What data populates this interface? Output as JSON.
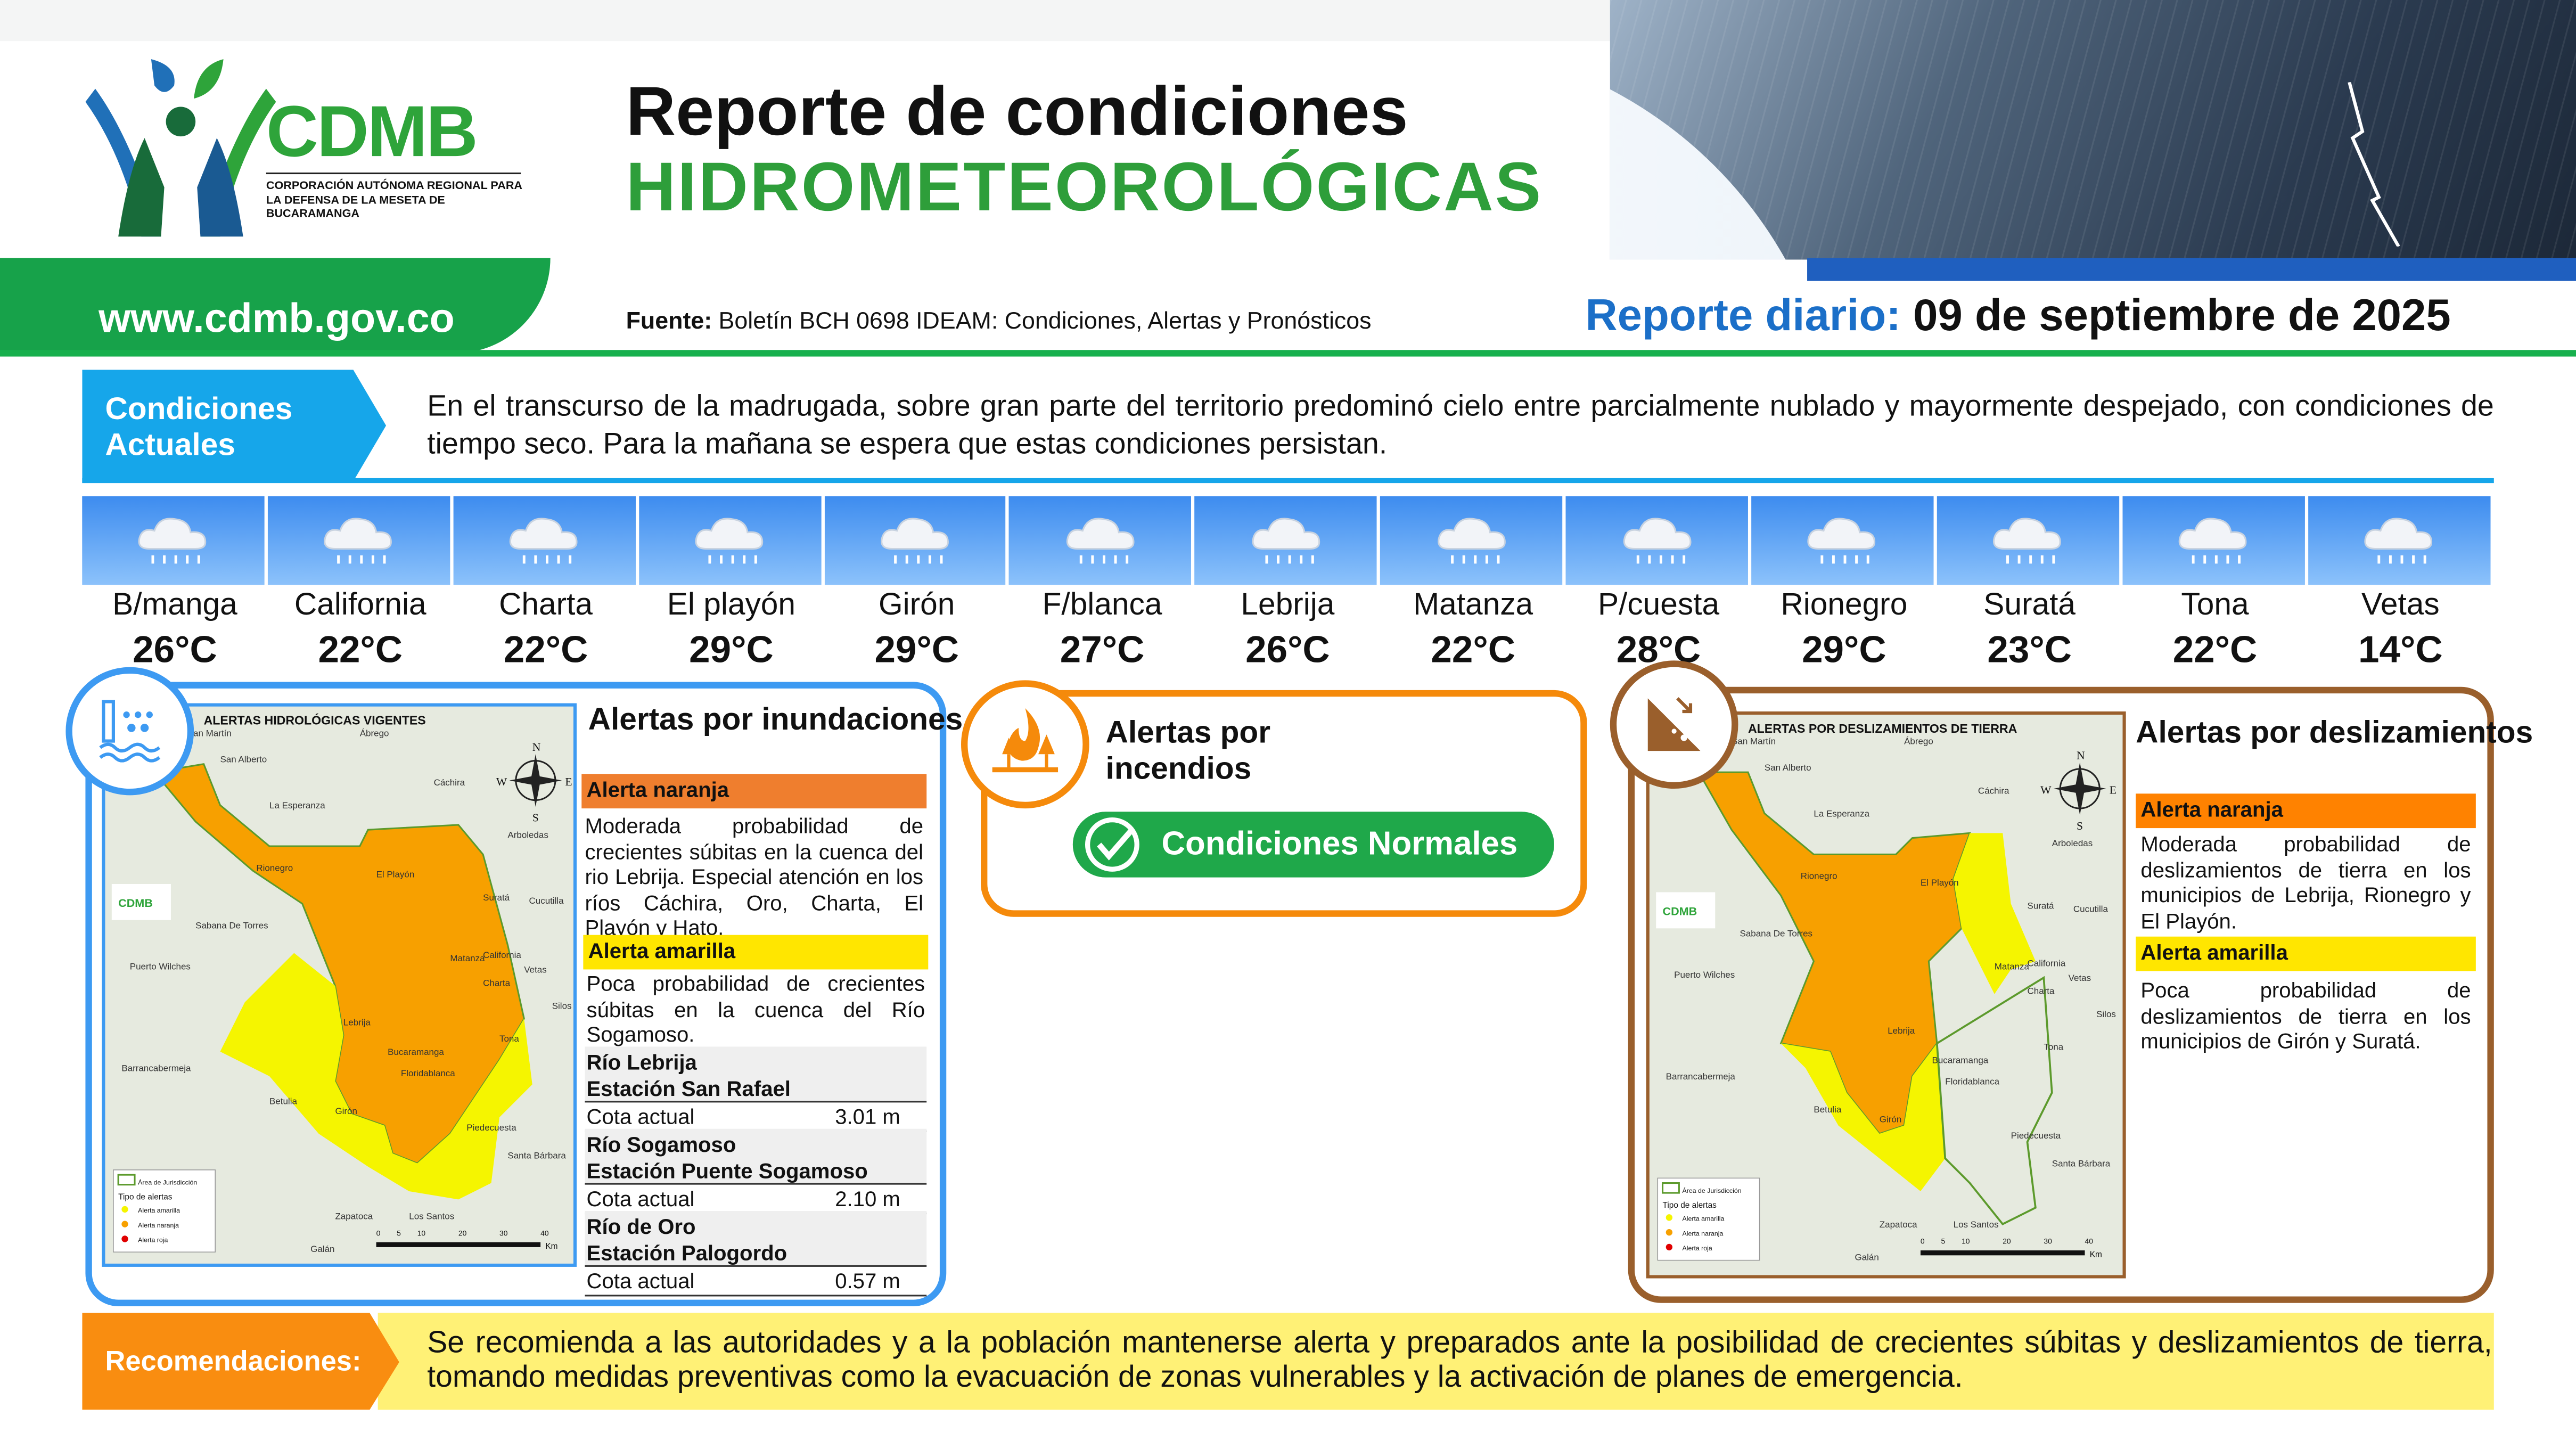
{
  "header": {
    "logo": {
      "name": "CDMB",
      "subtitle": "CORPORACIÓN AUTÓNOMA REGIONAL PARA LA DEFENSA DE LA MESETA DE BUCARAMANGA"
    },
    "title_line1": "Reporte de condiciones",
    "title_line2": "HIDROMETEOROLÓGICAS",
    "url": "www.cdmb.gov.co",
    "source_label": "Fuente:",
    "source_text": " Boletín BCH 0698 IDEAM: Condiciones, Alertas y Pronósticos",
    "report_label": "Reporte diario:",
    "report_date": " 09 de septiembre de 2025"
  },
  "conditions": {
    "label_line1": "Condiciones",
    "label_line2": "Actuales",
    "text": "En el transcurso de la madrugada, sobre gran parte del territorio predominó cielo entre parcialmente nublado y mayormente despejado, con condiciones de tiempo seco. Para la mañana se espera que estas condiciones persistan."
  },
  "weather": [
    {
      "name": "B/manga",
      "temp": "26°C",
      "icon": "rain-cloud-icon"
    },
    {
      "name": "California",
      "temp": "22°C",
      "icon": "rain-cloud-icon"
    },
    {
      "name": "Charta",
      "temp": "22°C",
      "icon": "rain-cloud-icon"
    },
    {
      "name": "El playón",
      "temp": "29°C",
      "icon": "rain-cloud-icon"
    },
    {
      "name": "Girón",
      "temp": "29°C",
      "icon": "rain-cloud-icon"
    },
    {
      "name": "F/blanca",
      "temp": "27°C",
      "icon": "rain-cloud-icon"
    },
    {
      "name": "Lebrija",
      "temp": "26°C",
      "icon": "rain-cloud-icon"
    },
    {
      "name": "Matanza",
      "temp": "22°C",
      "icon": "rain-cloud-icon"
    },
    {
      "name": "P/cuesta",
      "temp": "28°C",
      "icon": "rain-cloud-icon"
    },
    {
      "name": "Rionegro",
      "temp": "29°C",
      "icon": "rain-cloud-icon"
    },
    {
      "name": "Suratá",
      "temp": "23°C",
      "icon": "rain-cloud-icon"
    },
    {
      "name": "Tona",
      "temp": "22°C",
      "icon": "rain-cloud-icon"
    },
    {
      "name": "Vetas",
      "temp": "14°C",
      "icon": "rain-cloud-icon"
    }
  ],
  "floods": {
    "title": "Alertas por inundaciones",
    "map_title": "ALERTAS HIDROLÓGICAS VIGENTES",
    "orange_label": "Alerta naranja",
    "orange_text": "Moderada probabilidad de crecientes súbitas en la cuenca del rio Lebrija. Especial atención en los ríos Cáchira, Oro, Charta, El Playón y Hato.",
    "yellow_label": "Alerta amarilla",
    "yellow_text": "Poca probabilidad de crecientes súbitas en la cuenca del Río Sogamoso.",
    "stations": [
      {
        "river": "Río Lebrija",
        "station": "Estación San Rafael",
        "label": "Cota actual",
        "value": "3.01 m"
      },
      {
        "river": "Río Sogamoso",
        "station": "Estación Puente Sogamoso",
        "label": "Cota actual",
        "value": "2.10 m"
      },
      {
        "river": "Río de Oro",
        "station": "Estación Palogordo",
        "label": "Cota actual",
        "value": "0.57 m"
      }
    ]
  },
  "fires": {
    "title": "Alertas por incendios",
    "status": "Condiciones Normales"
  },
  "landslides": {
    "title": "Alertas por deslizamientos",
    "map_title": "ALERTAS POR DESLIZAMIENTOS DE TIERRA",
    "orange_label": "Alerta naranja",
    "orange_text": "Moderada probabilidad de deslizamientos de tierra en los municipios de Lebrija, Rionegro y El Playón.",
    "yellow_label": "Alerta amarilla",
    "yellow_text": "Poca probabilidad de deslizamientos de tierra en los municipios de Girón y Suratá."
  },
  "map_common": {
    "places": [
      "San Martín",
      "San Alberto",
      "Ábrego",
      "Cáchira",
      "La Esperanza",
      "Arboledas",
      "Rionegro",
      "El Playón",
      "Suratá",
      "Cucutilla",
      "Sabana De Torres",
      "Puerto Wilches",
      "Matanza",
      "California",
      "Vetas",
      "Charta",
      "Silos",
      "Lebrija",
      "Tona",
      "Bucaramanga",
      "Barrancabermeja",
      "Floridablanca",
      "Betulia",
      "Girón",
      "Piedecuesta",
      "Santa Bárbara",
      "Zapatoca",
      "Los Santos",
      "Galán"
    ],
    "legend_area": "Área de Jurisdicción",
    "legend_title": "Tipo de alertas",
    "legend_items": [
      "Alerta amarilla",
      "Alerta naranja",
      "Alerta roja"
    ],
    "scale": [
      "0",
      "5",
      "10",
      "20",
      "30",
      "40",
      "Km"
    ],
    "compass": [
      "N",
      "S",
      "W",
      "E"
    ]
  },
  "recommendations": {
    "label": "Recomendaciones:",
    "text": "Se recomienda a las autoridades y a la población mantenerse alerta y preparados ante la posibilidad de crecientes súbitas y deslizamientos de tierra, tomando medidas preventivas como la evacuación de zonas vulnerables y la activación de planes de emergencia."
  },
  "colors": {
    "green": "#17a24a",
    "blue": "#16a6ea",
    "orange": "#f98d10",
    "yellow": "#ffe600",
    "brown": "#9a5f2c"
  }
}
